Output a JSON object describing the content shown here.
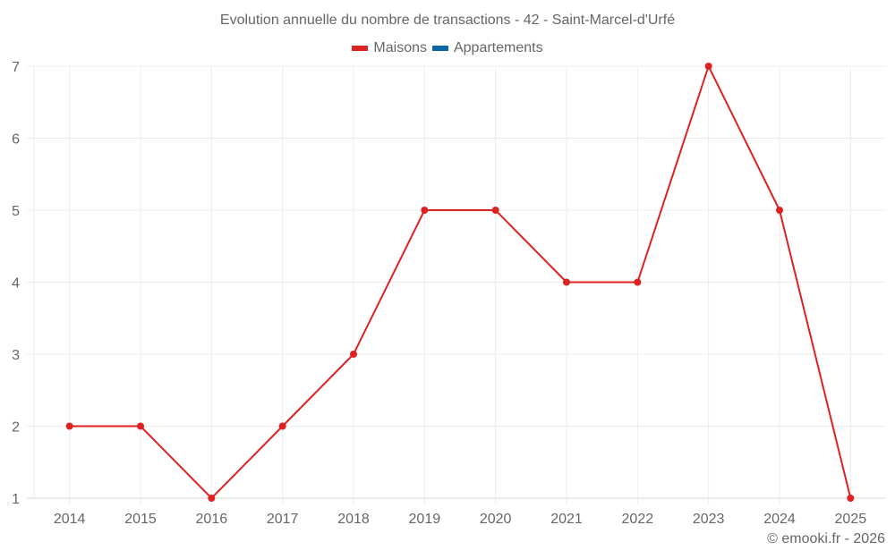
{
  "chart_data": {
    "type": "line",
    "title": "Evolution annuelle du nombre de transactions - 42 - Saint-Marcel-d'Urfé",
    "categories": [
      "2014",
      "2015",
      "2016",
      "2017",
      "2018",
      "2019",
      "2020",
      "2021",
      "2022",
      "2023",
      "2024",
      "2025"
    ],
    "series": [
      {
        "name": "Maisons",
        "color": "#dd2222",
        "values": [
          2,
          2,
          1,
          2,
          3,
          5,
          5,
          4,
          4,
          7,
          5,
          1
        ]
      },
      {
        "name": "Appartements",
        "color": "#0b6aa2",
        "values": []
      }
    ],
    "xlabel": "",
    "ylabel": "",
    "ylim": [
      1,
      7
    ],
    "yticks": [
      1,
      2,
      3,
      4,
      5,
      6,
      7
    ],
    "grid": true,
    "legend_position": "top"
  },
  "legend": {
    "items": [
      {
        "label": "Maisons",
        "color": "#dd2222"
      },
      {
        "label": "Appartements",
        "color": "#0b6aa2"
      }
    ]
  },
  "credit": "© emooki.fr - 2026"
}
